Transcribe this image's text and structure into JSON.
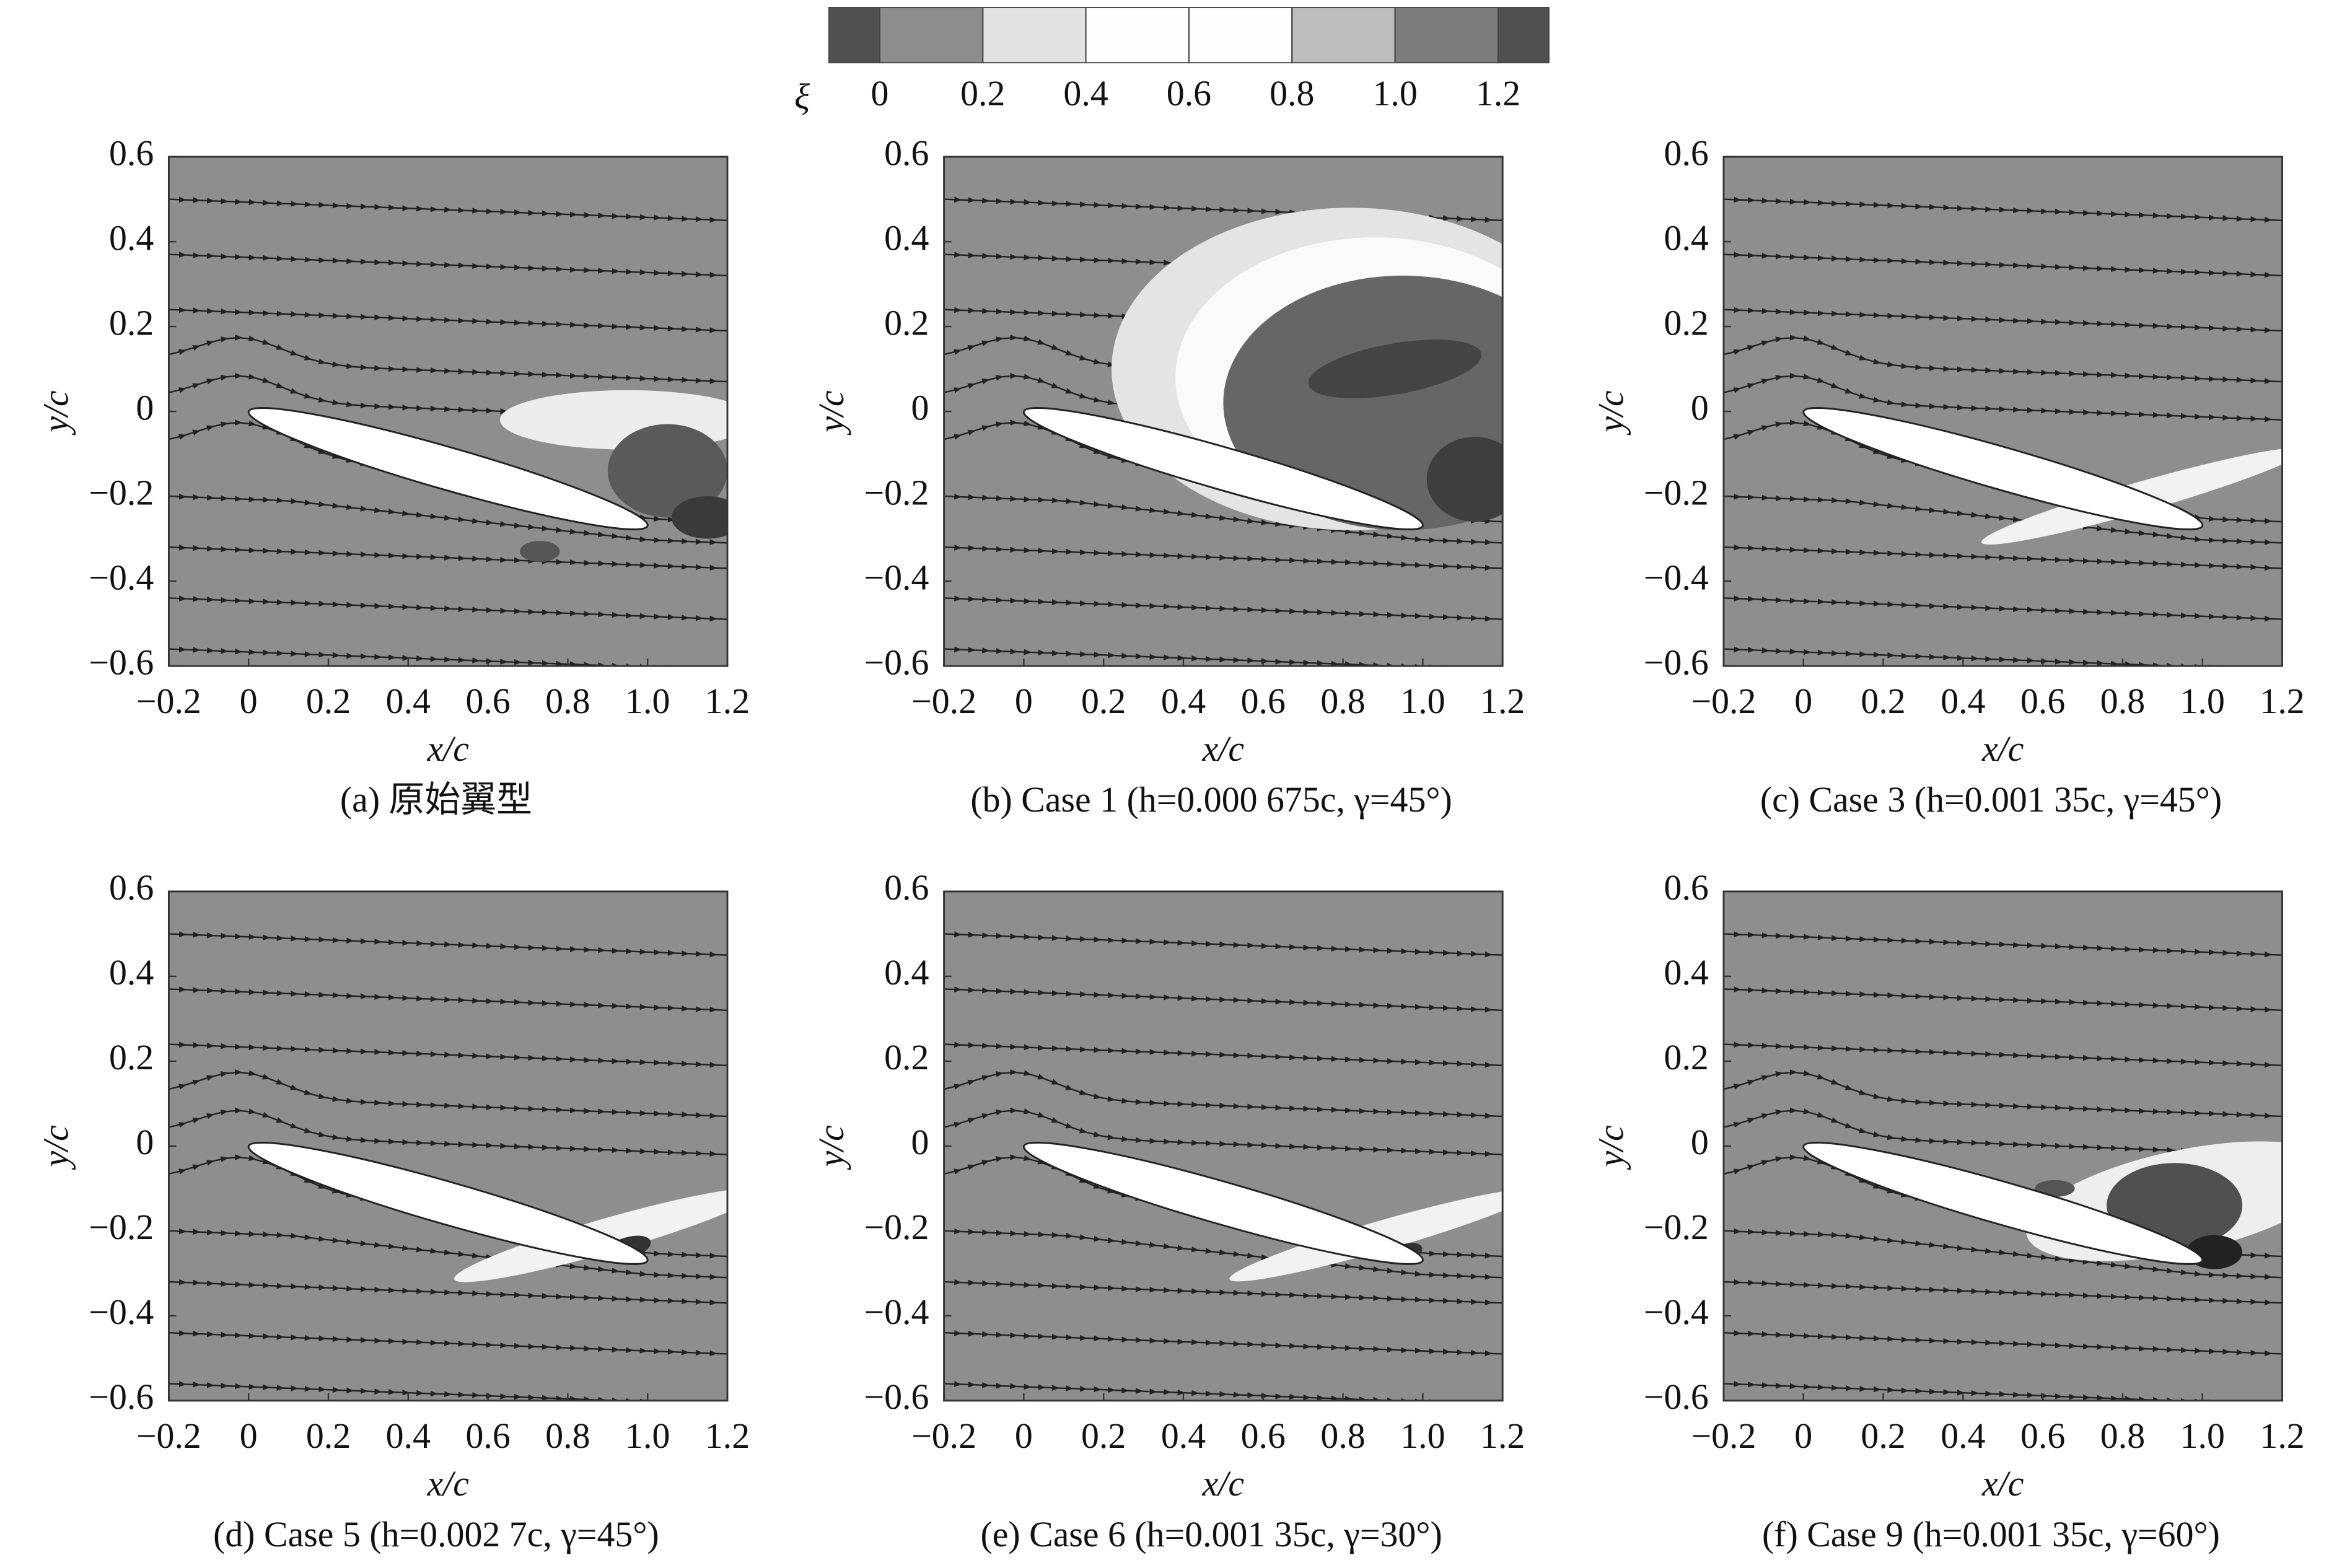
{
  "colorbar": {
    "label": "ξ",
    "ticks": [
      0,
      0.2,
      0.4,
      0.6,
      0.8,
      {
        "value": 1,
        "label": "1.0"
      },
      1.2
    ],
    "colors": [
      "#505050",
      "#8c8c8c",
      "#e2e2e2",
      "#fdfdfd",
      "#fdfdfd",
      "#bdbdbd",
      "#7c7c7c",
      "#505050"
    ]
  },
  "chart_data": [
    {
      "type": "contour",
      "caption": "(a) 原始翼型",
      "xlabel": "x/c",
      "ylabel": "y/c",
      "xlim": [
        -0.2,
        1.2
      ],
      "ylim": [
        -0.6,
        0.6
      ],
      "xticks": [
        {
          "value": -0.2,
          "label": "−0.2"
        },
        0,
        0.2,
        0.4,
        0.6,
        0.8,
        {
          "value": 1,
          "label": "1.0"
        },
        1.2
      ],
      "yticks": [
        {
          "value": -0.6,
          "label": "−0.6"
        },
        {
          "value": -0.4,
          "label": "−0.4"
        },
        {
          "value": -0.2,
          "label": "−0.2"
        },
        0,
        0.2,
        0.4,
        0.6
      ],
      "color": "#8e8e8e"
    },
    {
      "type": "contour",
      "caption": "(b) Case 1 (h=0.000 675c, γ=45°)",
      "xlabel": "x/c",
      "ylabel": "y/c",
      "xlim": [
        -0.2,
        1.2
      ],
      "ylim": [
        -0.6,
        0.6
      ],
      "xticks": [
        {
          "value": -0.2,
          "label": "−0.2"
        },
        0,
        0.2,
        0.4,
        0.6,
        0.8,
        {
          "value": 1,
          "label": "1.0"
        },
        1.2
      ],
      "yticks": [
        {
          "value": -0.6,
          "label": "−0.6"
        },
        {
          "value": -0.4,
          "label": "−0.4"
        },
        {
          "value": -0.2,
          "label": "−0.2"
        },
        0,
        0.2,
        0.4,
        0.6
      ],
      "color": "#8e8e8e"
    },
    {
      "type": "contour",
      "caption": "(c) Case 3 (h=0.001 35c, γ=45°)",
      "xlabel": "x/c",
      "ylabel": "y/c",
      "xlim": [
        -0.2,
        1.2
      ],
      "ylim": [
        -0.6,
        0.6
      ],
      "xticks": [
        {
          "value": -0.2,
          "label": "−0.2"
        },
        0,
        0.2,
        0.4,
        0.6,
        0.8,
        {
          "value": 1,
          "label": "1.0"
        },
        1.2
      ],
      "yticks": [
        {
          "value": -0.6,
          "label": "−0.6"
        },
        {
          "value": -0.4,
          "label": "−0.4"
        },
        {
          "value": -0.2,
          "label": "−0.2"
        },
        0,
        0.2,
        0.4,
        0.6
      ],
      "color": "#8e8e8e"
    },
    {
      "type": "contour",
      "caption": "(d) Case 5 (h=0.002 7c, γ=45°)",
      "xlabel": "x/c",
      "ylabel": "y/c",
      "xlim": [
        -0.2,
        1.2
      ],
      "ylim": [
        -0.6,
        0.6
      ],
      "xticks": [
        {
          "value": -0.2,
          "label": "−0.2"
        },
        0,
        0.2,
        0.4,
        0.6,
        0.8,
        {
          "value": 1,
          "label": "1.0"
        },
        1.2
      ],
      "yticks": [
        {
          "value": -0.6,
          "label": "−0.6"
        },
        {
          "value": -0.4,
          "label": "−0.4"
        },
        {
          "value": -0.2,
          "label": "−0.2"
        },
        0,
        0.2,
        0.4,
        0.6
      ],
      "color": "#8e8e8e"
    },
    {
      "type": "contour",
      "caption": "(e) Case 6 (h=0.001 35c, γ=30°)",
      "xlabel": "x/c",
      "ylabel": "y/c",
      "xlim": [
        -0.2,
        1.2
      ],
      "ylim": [
        -0.6,
        0.6
      ],
      "xticks": [
        {
          "value": -0.2,
          "label": "−0.2"
        },
        0,
        0.2,
        0.4,
        0.6,
        0.8,
        {
          "value": 1,
          "label": "1.0"
        },
        1.2
      ],
      "yticks": [
        {
          "value": -0.6,
          "label": "−0.6"
        },
        {
          "value": -0.4,
          "label": "−0.4"
        },
        {
          "value": -0.2,
          "label": "−0.2"
        },
        0,
        0.2,
        0.4,
        0.6
      ],
      "color": "#8e8e8e"
    },
    {
      "type": "contour",
      "caption": "(f) Case 9 (h=0.001 35c, γ=60°)",
      "xlabel": "x/c",
      "ylabel": "y/c",
      "xlim": [
        -0.2,
        1.2
      ],
      "ylim": [
        -0.6,
        0.6
      ],
      "xticks": [
        {
          "value": -0.2,
          "label": "−0.2"
        },
        0,
        0.2,
        0.4,
        0.6,
        0.8,
        {
          "value": 1,
          "label": "1.0"
        },
        1.2
      ],
      "yticks": [
        {
          "value": -0.6,
          "label": "−0.6"
        },
        {
          "value": -0.4,
          "label": "−0.4"
        },
        {
          "value": -0.2,
          "label": "−0.2"
        },
        0,
        0.2,
        0.4,
        0.6
      ],
      "color": "#8e8e8e"
    }
  ]
}
